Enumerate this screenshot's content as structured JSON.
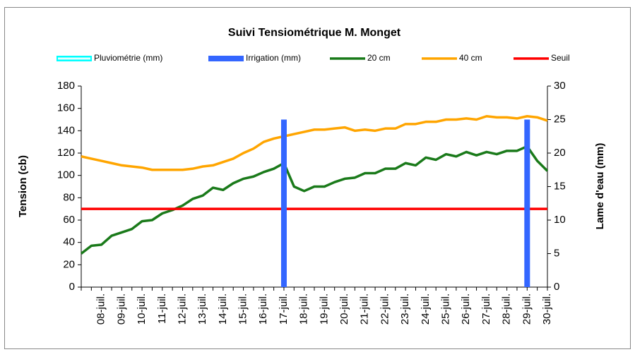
{
  "chart_data": {
    "type": "line",
    "title": "Suivi Tensiométrique M. Monget",
    "ylabel": "Tension (cb)",
    "y2label": "Lame d'eau (mm)",
    "categories": [
      null,
      null,
      "08-juil.",
      null,
      "09-juil.",
      null,
      "10-juil.",
      null,
      "11-juil.",
      null,
      "12-juil.",
      null,
      "13-juil.",
      null,
      "14-juil.",
      null,
      "15-juil.",
      null,
      "16-juil.",
      null,
      "17-juil.",
      null,
      "18-juil.",
      null,
      "19-juil.",
      null,
      "20-juil.",
      null,
      "21-juil.",
      null,
      "22-juil.",
      null,
      "23-juil.",
      null,
      "24-juil.",
      null,
      "25-juil.",
      null,
      "26-juil.",
      null,
      "27-juil.",
      null,
      "28-juil.",
      null,
      "29-juil.",
      null,
      "30-juil."
    ],
    "ylim": [
      0,
      180
    ],
    "yticks": [
      0,
      20,
      40,
      60,
      80,
      100,
      120,
      140,
      160,
      180
    ],
    "y2lim": [
      0,
      30
    ],
    "y2ticks": [
      0,
      5,
      10,
      15,
      20,
      25,
      30
    ],
    "grid": false,
    "legend": "top",
    "series": [
      {
        "name": "Pluviométrie (mm)",
        "type": "bar",
        "axis": "y2",
        "color": "#00ffff",
        "values": [
          0,
          0,
          0,
          0,
          0,
          0,
          0,
          0,
          0,
          0,
          0,
          0,
          0,
          0,
          0,
          0,
          0,
          0,
          0,
          0,
          0,
          0,
          0,
          0,
          0,
          0,
          0,
          0,
          0,
          0,
          0,
          0,
          0,
          0,
          0,
          0,
          0,
          0,
          0,
          0,
          0,
          0,
          0,
          0,
          0,
          0,
          0
        ]
      },
      {
        "name": "Irrigation (mm)",
        "type": "bar",
        "axis": "y2",
        "color": "#3366ff",
        "values": [
          null,
          null,
          null,
          null,
          null,
          null,
          null,
          null,
          null,
          null,
          null,
          null,
          null,
          null,
          null,
          null,
          null,
          null,
          null,
          null,
          25,
          null,
          null,
          null,
          null,
          null,
          null,
          null,
          null,
          null,
          null,
          null,
          null,
          null,
          null,
          null,
          null,
          null,
          null,
          null,
          null,
          null,
          null,
          null,
          25,
          null,
          null
        ]
      },
      {
        "name": "20 cm",
        "type": "line",
        "color": "#1a7a1a",
        "values": [
          30,
          37,
          38,
          46,
          49,
          52,
          59,
          60,
          66,
          69,
          73,
          79,
          82,
          89,
          87,
          93,
          97,
          99,
          103,
          106,
          111,
          90,
          86,
          90,
          90,
          94,
          97,
          98,
          102,
          102,
          106,
          106,
          111,
          109,
          116,
          114,
          119,
          117,
          121,
          118,
          121,
          119,
          122,
          122,
          126,
          113,
          104
        ]
      },
      {
        "name": "40 cm",
        "type": "line",
        "color": "#ffa500",
        "values": [
          117,
          115,
          113,
          111,
          109,
          108,
          107,
          105,
          105,
          105,
          105,
          106,
          108,
          109,
          112,
          115,
          120,
          124,
          130,
          133,
          135,
          137,
          139,
          141,
          141,
          142,
          143,
          140,
          141,
          140,
          142,
          142,
          146,
          146,
          148,
          148,
          150,
          150,
          151,
          150,
          153,
          152,
          152,
          151,
          153,
          152,
          149
        ]
      },
      {
        "name": "Seuil",
        "type": "line",
        "color": "#ff0000",
        "values": [
          70,
          70,
          70,
          70,
          70,
          70,
          70,
          70,
          70,
          70,
          70,
          70,
          70,
          70,
          70,
          70,
          70,
          70,
          70,
          70,
          70,
          70,
          70,
          70,
          70,
          70,
          70,
          70,
          70,
          70,
          70,
          70,
          70,
          70,
          70,
          70,
          70,
          70,
          70,
          70,
          70,
          70,
          70,
          70,
          70,
          70,
          70
        ]
      }
    ]
  }
}
